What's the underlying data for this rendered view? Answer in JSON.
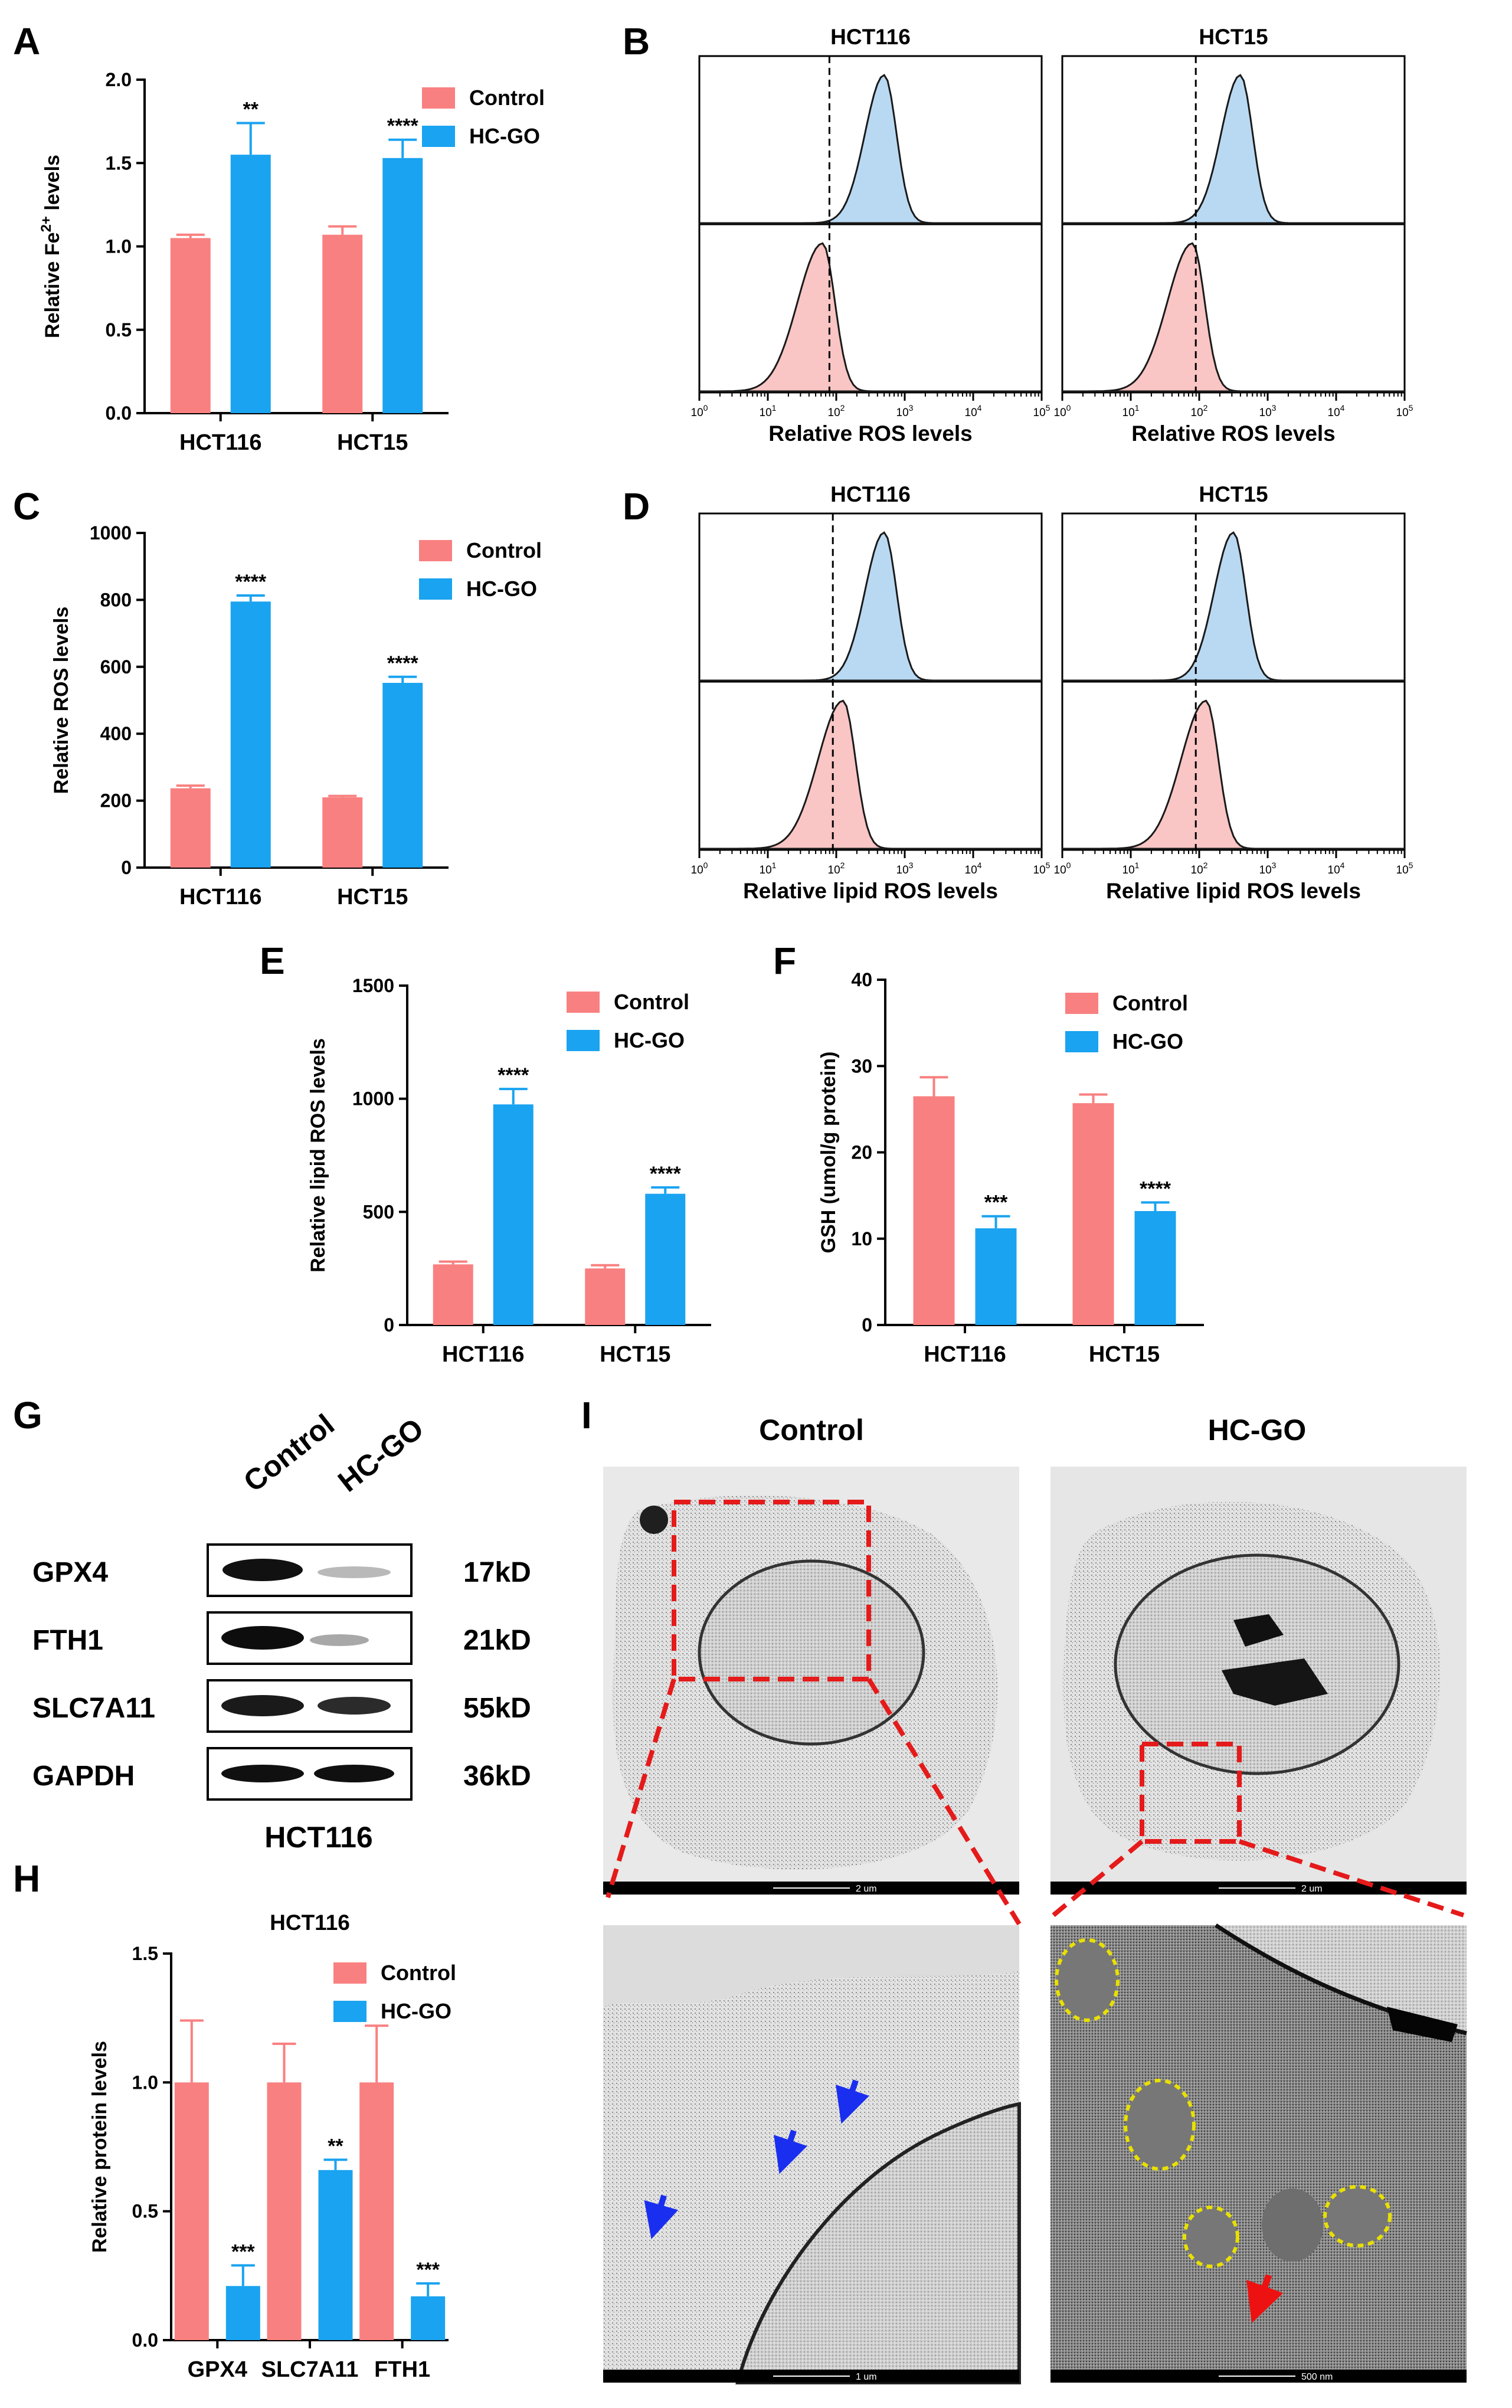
{
  "panels": {
    "A": "A",
    "B": "B",
    "C": "C",
    "D": "D",
    "E": "E",
    "F": "F",
    "G": "G",
    "H": "H",
    "I": "I"
  },
  "colors": {
    "control": "#f98080",
    "hcgo": "#1aa3f0",
    "ctrl_fill": "#f9c5c5",
    "hcgo_fill": "#b9d9f3"
  },
  "chart_data": [
    {
      "id": "A",
      "type": "bar",
      "title": "",
      "ylabel": "Relative Fe²⁺ levels",
      "ylabel_main": "Relative Fe",
      "ylabel_sup": "2+",
      "ylabel_tail": " levels",
      "categories": [
        "HCT116",
        "HCT15"
      ],
      "ylim": [
        0,
        2.0
      ],
      "yticks": [
        0,
        0.5,
        1.0,
        1.5,
        2.0
      ],
      "tick_labels": [
        "0.0",
        "0.5",
        "1.0",
        "1.5",
        "2.0"
      ],
      "legend": [
        "Control",
        "HC-GO"
      ],
      "series": [
        {
          "name": "Control",
          "values": [
            1.05,
            1.07
          ],
          "errors": [
            0.02,
            0.05
          ]
        },
        {
          "name": "HC-GO",
          "values": [
            1.55,
            1.53
          ],
          "errors": [
            0.19,
            0.11
          ]
        }
      ],
      "significance": [
        "**",
        "****"
      ]
    },
    {
      "id": "C",
      "type": "bar",
      "title": "",
      "ylabel": "Relative ROS levels",
      "categories": [
        "HCT116",
        "HCT15"
      ],
      "ylim": [
        0,
        1000
      ],
      "yticks": [
        0,
        200,
        400,
        600,
        800,
        1000
      ],
      "tick_labels": [
        "0",
        "200",
        "400",
        "600",
        "800",
        "1000"
      ],
      "legend": [
        "Control",
        "HC-GO"
      ],
      "series": [
        {
          "name": "Control",
          "values": [
            237,
            210
          ],
          "errors": [
            8,
            4
          ]
        },
        {
          "name": "HC-GO",
          "values": [
            795,
            552
          ],
          "errors": [
            18,
            18
          ]
        }
      ],
      "significance": [
        "****",
        "****"
      ]
    },
    {
      "id": "E",
      "type": "bar",
      "title": "",
      "ylabel": "Relative lipid ROS levels",
      "categories": [
        "HCT116",
        "HCT15"
      ],
      "ylim": [
        0,
        1500
      ],
      "yticks": [
        0,
        500,
        1000,
        1500
      ],
      "tick_labels": [
        "0",
        "500",
        "1000",
        "1500"
      ],
      "legend": [
        "Control",
        "HC-GO"
      ],
      "series": [
        {
          "name": "Control",
          "values": [
            268,
            250
          ],
          "errors": [
            12,
            14
          ]
        },
        {
          "name": "HC-GO",
          "values": [
            975,
            580
          ],
          "errors": [
            68,
            28
          ]
        }
      ],
      "significance": [
        "****",
        "****"
      ]
    },
    {
      "id": "F",
      "type": "bar",
      "title": "",
      "ylabel": "GSH (umol/g protein)",
      "categories": [
        "HCT116",
        "HCT15"
      ],
      "ylim": [
        0,
        40
      ],
      "yticks": [
        0,
        10,
        20,
        30,
        40
      ],
      "tick_labels": [
        "0",
        "10",
        "20",
        "30",
        "40"
      ],
      "legend": [
        "Control",
        "HC-GO"
      ],
      "series": [
        {
          "name": "Control",
          "values": [
            26.5,
            25.7
          ],
          "errors": [
            2.2,
            1.0
          ]
        },
        {
          "name": "HC-GO",
          "values": [
            11.2,
            13.2
          ],
          "errors": [
            1.4,
            1.0
          ]
        }
      ],
      "significance": [
        "***",
        "****"
      ]
    },
    {
      "id": "H",
      "type": "bar",
      "title": "HCT116",
      "ylabel": "Relative protein levels",
      "categories": [
        "GPX4",
        "SLC7A11",
        "FTH1"
      ],
      "ylim": [
        0,
        1.5
      ],
      "yticks": [
        0,
        0.5,
        1.0,
        1.5
      ],
      "tick_labels": [
        "0.0",
        "0.5",
        "1.0",
        "1.5"
      ],
      "legend": [
        "Control",
        "HC-GO"
      ],
      "series": [
        {
          "name": "Control",
          "values": [
            1.0,
            1.0,
            1.0
          ],
          "errors": [
            0.24,
            0.15,
            0.22
          ]
        },
        {
          "name": "HC-GO",
          "values": [
            0.21,
            0.66,
            0.17
          ],
          "errors": [
            0.08,
            0.04,
            0.05
          ]
        }
      ],
      "significance": [
        "***",
        "**",
        "***"
      ]
    },
    {
      "id": "B",
      "type": "histogram",
      "xlabel": "Relative ROS levels",
      "subplots": [
        {
          "title": "HCT116",
          "control_peak_log10": 1.8,
          "hcgo_peak_log10": 2.7,
          "gate_log10": 1.9
        },
        {
          "title": "HCT15",
          "control_peak_log10": 1.9,
          "hcgo_peak_log10": 2.6,
          "gate_log10": 1.95
        }
      ],
      "x_ticks": [
        "10^0",
        "10^1",
        "10^2",
        "10^3",
        "10^4",
        "10^5"
      ]
    },
    {
      "id": "D",
      "type": "histogram",
      "xlabel": "Relative lipid ROS levels",
      "subplots": [
        {
          "title": "HCT116",
          "control_peak_log10": 2.1,
          "hcgo_peak_log10": 2.7,
          "gate_log10": 1.95
        },
        {
          "title": "HCT15",
          "control_peak_log10": 2.1,
          "hcgo_peak_log10": 2.5,
          "gate_log10": 1.95
        }
      ],
      "x_ticks": [
        "10^0",
        "10^1",
        "10^2",
        "10^3",
        "10^4",
        "10^5"
      ]
    }
  ],
  "western": {
    "columns": [
      "Control",
      "HC-GO"
    ],
    "rows": [
      {
        "protein": "GPX4",
        "size": "17kD"
      },
      {
        "protein": "FTH1",
        "size": "21kD"
      },
      {
        "protein": "SLC7A11",
        "size": "55kD"
      },
      {
        "protein": "GAPDH",
        "size": "36kD"
      }
    ],
    "cell_line": "HCT116"
  },
  "tem": {
    "headers": [
      "Control",
      "HC-GO"
    ],
    "scale_top": [
      "2 um",
      "2 um"
    ],
    "scale_bottom": [
      "1 um",
      "500 nm"
    ]
  }
}
